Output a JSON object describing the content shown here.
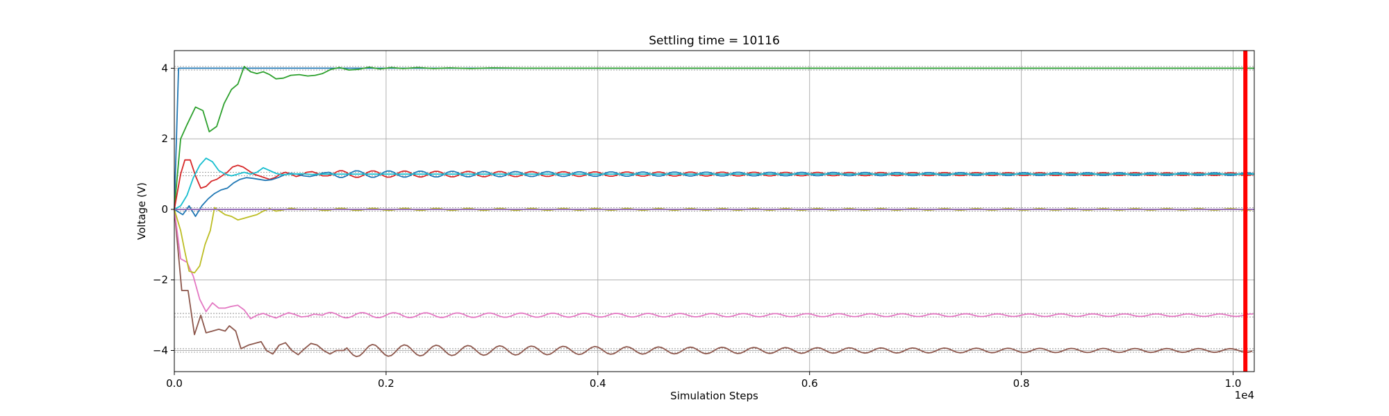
{
  "chart_data": {
    "type": "line",
    "title": "Settling time = 10116",
    "xlabel": "Simulation Steps",
    "ylabel": "Voltage (V)",
    "x_offset_label": "1e4",
    "xlim": [
      0,
      10200
    ],
    "ylim": [
      -4.6,
      4.5
    ],
    "x_ticks": [
      0,
      2000,
      4000,
      6000,
      8000,
      10000
    ],
    "x_tick_labels": [
      "0.0",
      "0.2",
      "0.4",
      "0.6",
      "0.8",
      "1.0"
    ],
    "y_ticks": [
      -4,
      -2,
      0,
      2,
      4
    ],
    "y_tick_labels": [
      "−4",
      "−2",
      "0",
      "2",
      "4"
    ],
    "grid": true,
    "settling_time": 10116,
    "settling_marker_color": "#ff0000",
    "series": [
      {
        "color": "#1f77b4",
        "target": 4,
        "points": [
          [
            0,
            0
          ],
          [
            40,
            4
          ],
          [
            10200,
            4
          ]
        ]
      },
      {
        "color": "#2ca02c",
        "target": 4,
        "points": [
          [
            0,
            0
          ],
          [
            60,
            2
          ],
          [
            120,
            2.4
          ],
          [
            200,
            2.9
          ],
          [
            270,
            2.8
          ],
          [
            330,
            2.2
          ],
          [
            400,
            2.35
          ],
          [
            470,
            3.0
          ],
          [
            540,
            3.4
          ],
          [
            600,
            3.55
          ],
          [
            660,
            4.05
          ],
          [
            720,
            3.9
          ],
          [
            780,
            3.85
          ],
          [
            840,
            3.9
          ],
          [
            900,
            3.82
          ],
          [
            960,
            3.7
          ],
          [
            1030,
            3.72
          ],
          [
            1100,
            3.8
          ],
          [
            1180,
            3.82
          ],
          [
            1260,
            3.78
          ],
          [
            1330,
            3.8
          ],
          [
            1400,
            3.85
          ],
          [
            1480,
            3.97
          ],
          [
            1560,
            4.02
          ],
          [
            1650,
            3.95
          ],
          [
            1740,
            3.97
          ],
          [
            1840,
            4.03
          ],
          [
            1940,
            3.98
          ],
          [
            2050,
            4.02
          ],
          [
            2160,
            3.99
          ],
          [
            2300,
            4.02
          ],
          [
            2450,
            3.99
          ],
          [
            2600,
            4.01
          ],
          [
            2800,
            3.99
          ],
          [
            3000,
            4.01
          ],
          [
            3300,
            4.0
          ],
          [
            10200,
            4.0
          ]
        ]
      },
      {
        "color": "#d62728",
        "target": 1,
        "amp0": 0.1,
        "amp_end": 0.03,
        "period": 300,
        "phase": 0,
        "decay": 3500,
        "start": 1500,
        "points": [
          [
            0,
            0
          ],
          [
            60,
            1.0
          ],
          [
            100,
            1.4
          ],
          [
            150,
            1.4
          ],
          [
            200,
            0.95
          ],
          [
            250,
            0.6
          ],
          [
            300,
            0.65
          ],
          [
            350,
            0.8
          ],
          [
            400,
            0.85
          ],
          [
            450,
            0.95
          ],
          [
            500,
            1.05
          ],
          [
            550,
            1.2
          ],
          [
            600,
            1.25
          ],
          [
            650,
            1.2
          ],
          [
            700,
            1.1
          ],
          [
            750,
            1.0
          ],
          [
            800,
            0.95
          ],
          [
            850,
            0.9
          ],
          [
            900,
            0.85
          ],
          [
            950,
            0.9
          ],
          [
            1000,
            1.0
          ],
          [
            1050,
            1.05
          ],
          [
            1100,
            1.0
          ],
          [
            1150,
            0.93
          ],
          [
            1200,
            0.97
          ],
          [
            1250,
            1.05
          ],
          [
            1300,
            1.07
          ],
          [
            1350,
            1.02
          ],
          [
            1400,
            0.95
          ],
          [
            1450,
            0.95
          ],
          [
            1500,
            1.0
          ]
        ]
      },
      {
        "color": "#1f77b4",
        "target": 1,
        "amp0": 0.1,
        "amp_end": 0.03,
        "period": 300,
        "phase": 150,
        "decay": 3500,
        "start": 1500,
        "points": [
          [
            0,
            0
          ],
          [
            80,
            -0.15
          ],
          [
            140,
            0.1
          ],
          [
            200,
            -0.2
          ],
          [
            260,
            0.1
          ],
          [
            320,
            0.3
          ],
          [
            380,
            0.45
          ],
          [
            440,
            0.55
          ],
          [
            500,
            0.6
          ],
          [
            560,
            0.75
          ],
          [
            620,
            0.85
          ],
          [
            680,
            0.9
          ],
          [
            740,
            0.88
          ],
          [
            800,
            0.85
          ],
          [
            860,
            0.82
          ],
          [
            920,
            0.84
          ],
          [
            980,
            0.9
          ],
          [
            1040,
            0.98
          ],
          [
            1100,
            1.02
          ],
          [
            1160,
            1.0
          ],
          [
            1220,
            0.95
          ],
          [
            1280,
            0.93
          ],
          [
            1340,
            0.97
          ],
          [
            1400,
            1.03
          ],
          [
            1460,
            1.05
          ],
          [
            1500,
            1.0
          ]
        ]
      },
      {
        "color": "#17becf",
        "target": 1,
        "points": [
          [
            0,
            0
          ],
          [
            60,
            0.1
          ],
          [
            120,
            0.4
          ],
          [
            180,
            0.9
          ],
          [
            240,
            1.25
          ],
          [
            300,
            1.45
          ],
          [
            360,
            1.35
          ],
          [
            420,
            1.1
          ],
          [
            480,
            1.0
          ],
          [
            540,
            0.95
          ],
          [
            600,
            1.0
          ],
          [
            660,
            1.05
          ],
          [
            720,
            1.0
          ],
          [
            780,
            1.05
          ],
          [
            840,
            1.18
          ],
          [
            900,
            1.1
          ],
          [
            960,
            1.02
          ],
          [
            1020,
            0.98
          ],
          [
            1100,
            1.0
          ],
          [
            1200,
            1.01
          ],
          [
            1300,
            0.99
          ],
          [
            1400,
            1.0
          ],
          [
            10200,
            1.0
          ]
        ]
      },
      {
        "color": "#8c564b",
        "target": -4,
        "amp0": 0.18,
        "amp_end": 0.04,
        "period": 300,
        "phase": 0,
        "decay": 3500,
        "start": 1600,
        "points": [
          [
            0,
            0
          ],
          [
            70,
            -2.3
          ],
          [
            130,
            -2.3
          ],
          [
            190,
            -3.55
          ],
          [
            250,
            -3.0
          ],
          [
            300,
            -3.5
          ],
          [
            360,
            -3.45
          ],
          [
            420,
            -3.4
          ],
          [
            480,
            -3.45
          ],
          [
            520,
            -3.3
          ],
          [
            580,
            -3.45
          ],
          [
            630,
            -3.95
          ],
          [
            700,
            -3.85
          ],
          [
            760,
            -3.8
          ],
          [
            820,
            -3.75
          ],
          [
            870,
            -4.0
          ],
          [
            930,
            -4.1
          ],
          [
            990,
            -3.85
          ],
          [
            1050,
            -3.78
          ],
          [
            1110,
            -4.0
          ],
          [
            1170,
            -4.12
          ],
          [
            1230,
            -3.95
          ],
          [
            1290,
            -3.8
          ],
          [
            1350,
            -3.85
          ],
          [
            1410,
            -4.0
          ],
          [
            1470,
            -4.1
          ],
          [
            1530,
            -4.0
          ],
          [
            1600,
            -4.0
          ]
        ]
      },
      {
        "color": "#e377c2",
        "target": -3,
        "amp0": 0.08,
        "amp_end": 0.03,
        "period": 300,
        "phase": 100,
        "decay": 3500,
        "start": 1400,
        "points": [
          [
            0,
            0
          ],
          [
            60,
            -1.4
          ],
          [
            120,
            -1.5
          ],
          [
            180,
            -1.9
          ],
          [
            240,
            -2.55
          ],
          [
            300,
            -2.9
          ],
          [
            360,
            -2.65
          ],
          [
            420,
            -2.8
          ],
          [
            480,
            -2.8
          ],
          [
            540,
            -2.75
          ],
          [
            600,
            -2.72
          ],
          [
            660,
            -2.85
          ],
          [
            720,
            -3.1
          ],
          [
            780,
            -3.0
          ],
          [
            840,
            -2.95
          ],
          [
            900,
            -3.02
          ],
          [
            960,
            -3.08
          ],
          [
            1020,
            -3.0
          ],
          [
            1080,
            -2.93
          ],
          [
            1140,
            -2.98
          ],
          [
            1200,
            -3.05
          ],
          [
            1260,
            -3.03
          ],
          [
            1320,
            -2.97
          ],
          [
            1400,
            -3.0
          ]
        ]
      },
      {
        "color": "#bcbd22",
        "target": 0,
        "amp0": 0.03,
        "amp_end": 0.02,
        "period": 300,
        "phase": 0,
        "decay": 3500,
        "start": 1300,
        "points": [
          [
            0,
            0
          ],
          [
            60,
            -0.6
          ],
          [
            100,
            -1.2
          ],
          [
            140,
            -1.75
          ],
          [
            190,
            -1.8
          ],
          [
            240,
            -1.6
          ],
          [
            290,
            -1.0
          ],
          [
            340,
            -0.6
          ],
          [
            380,
            0.05
          ],
          [
            430,
            -0.05
          ],
          [
            480,
            -0.15
          ],
          [
            540,
            -0.2
          ],
          [
            600,
            -0.3
          ],
          [
            660,
            -0.25
          ],
          [
            720,
            -0.2
          ],
          [
            780,
            -0.15
          ],
          [
            840,
            -0.05
          ],
          [
            900,
            0.02
          ],
          [
            960,
            -0.05
          ],
          [
            1020,
            -0.02
          ],
          [
            1100,
            0.03
          ],
          [
            1200,
            -0.01
          ],
          [
            1300,
            0.0
          ]
        ]
      },
      {
        "color": "#7f7f7f",
        "target": 0,
        "points": [
          [
            0,
            0
          ],
          [
            10200,
            0
          ]
        ]
      },
      {
        "color": "#9467bd",
        "target": 0,
        "points": [
          [
            0,
            0
          ],
          [
            10200,
            0
          ]
        ]
      }
    ]
  }
}
